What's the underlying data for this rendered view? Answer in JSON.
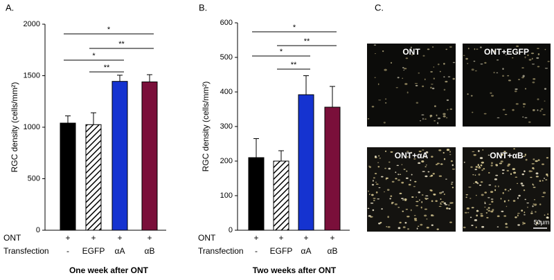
{
  "chart_data": [
    {
      "type": "bar",
      "panel_label": "A.",
      "ylabel": "RGC density (cells/mm²)",
      "xlabel": "One week after ONT",
      "row_label": "ONT",
      "row_values": [
        "+",
        "+",
        "+",
        "+"
      ],
      "category_label": "Transfection",
      "categories": [
        "-",
        "EGFP",
        "αA",
        "αB"
      ],
      "values": [
        1040,
        1025,
        1445,
        1440
      ],
      "errors": [
        70,
        115,
        60,
        70
      ],
      "colors": [
        "#000000",
        "#ffffff",
        "#1533d0",
        "#7a0f3a"
      ],
      "hatched": [
        false,
        true,
        false,
        false
      ],
      "ylim": [
        0,
        2000
      ],
      "yticks": [
        0,
        500,
        1000,
        1500,
        2000
      ],
      "annotations": [
        {
          "text": "*",
          "from": 0,
          "to": 3,
          "y": 1906
        },
        {
          "text": "**",
          "from": 1,
          "to": 3,
          "y": 1765
        },
        {
          "text": "*",
          "from": 0,
          "to": 2,
          "y": 1651
        },
        {
          "text": "**",
          "from": 1,
          "to": 2,
          "y": 1537
        }
      ]
    },
    {
      "type": "bar",
      "panel_label": "B.",
      "ylabel": "RGC density (cells/mm²)",
      "xlabel": "Two weeks after ONT",
      "row_label": "ONT",
      "row_values": [
        "+",
        "+",
        "+",
        "+"
      ],
      "category_label": "Transfection",
      "categories": [
        "-",
        "EGFP",
        "αA",
        "αB"
      ],
      "values": [
        210,
        200,
        392,
        356
      ],
      "errors": [
        55,
        30,
        55,
        60
      ],
      "colors": [
        "#000000",
        "#ffffff",
        "#1533d0",
        "#7a0f3a"
      ],
      "hatched": [
        false,
        true,
        false,
        false
      ],
      "ylim": [
        0,
        600
      ],
      "yticks": [
        0,
        100,
        200,
        300,
        400,
        500,
        600
      ],
      "annotations": [
        {
          "text": "*",
          "from": 0,
          "to": 3,
          "y": 574
        },
        {
          "text": "**",
          "from": 1,
          "to": 3,
          "y": 534
        },
        {
          "text": "*",
          "from": 0,
          "to": 2,
          "y": 504
        },
        {
          "text": "**",
          "from": 1,
          "to": 2,
          "y": 466
        }
      ]
    }
  ],
  "panel_c": {
    "panel_label": "C.",
    "images": [
      "ONT",
      "ONT+EGFP",
      "ONT+αA",
      "ONT+αB"
    ],
    "scale_bar": "50μm"
  }
}
